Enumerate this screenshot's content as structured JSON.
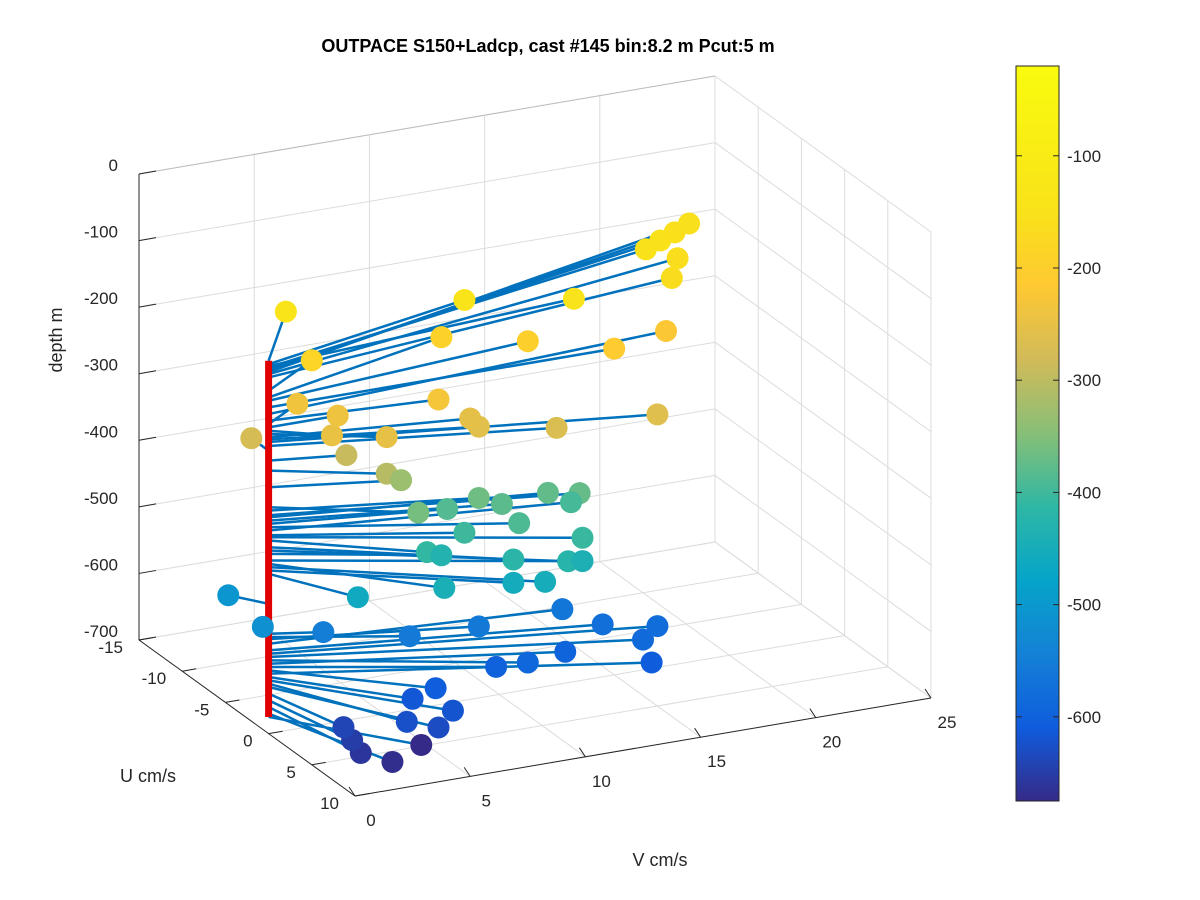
{
  "chart_data": {
    "type": "scatter",
    "title": "OUTPACE S150+Ladcp, cast #145 bin:8.2 m  Pcut:5 m",
    "xlabel": "U cm/s",
    "ylabel": "V cm/s",
    "zlabel": "depth m",
    "xlim": [
      -15,
      10
    ],
    "ylim": [
      0,
      25
    ],
    "zlim": [
      -700,
      0
    ],
    "grid": true,
    "xticks": [
      "-15",
      "-10",
      "-5",
      "0",
      "5",
      "10"
    ],
    "yticks": [
      "0",
      "5",
      "10",
      "15",
      "20",
      "25"
    ],
    "zticks": [
      "0",
      "-100",
      "-200",
      "-300",
      "-400",
      "-500",
      "-600",
      "-700"
    ],
    "colorbar": {
      "ticks": [
        "-100",
        "-200",
        "-300",
        "-400",
        "-500",
        "-600"
      ],
      "range": [
        -675,
        -20
      ],
      "colormap": "parula"
    },
    "stick_origin": {
      "u": 0,
      "v": 0
    },
    "stick_color": "#0072BD",
    "axis_line_color": "#E00000",
    "points": [
      {
        "d": -140,
        "u": -6,
        "v": 3
      },
      {
        "d": -145,
        "u": -4,
        "v": 10
      },
      {
        "d": -148,
        "u": -2,
        "v": 14
      },
      {
        "d": -150,
        "u": -7,
        "v": 19
      },
      {
        "d": -152,
        "u": -8,
        "v": 20
      },
      {
        "d": -155,
        "u": -9,
        "v": 21
      },
      {
        "d": -157,
        "u": -10,
        "v": 22
      },
      {
        "d": -160,
        "u": -6,
        "v": 20
      },
      {
        "d": -165,
        "u": -4,
        "v": 19
      },
      {
        "d": -185,
        "u": -3,
        "v": 3
      },
      {
        "d": -195,
        "u": -4,
        "v": 9
      },
      {
        "d": -200,
        "u": -2,
        "v": 12
      },
      {
        "d": -210,
        "u": 0,
        "v": 15
      },
      {
        "d": -220,
        "u": -2,
        "v": 18
      },
      {
        "d": -230,
        "u": 1,
        "v": 7
      },
      {
        "d": -235,
        "u": -2,
        "v": 2
      },
      {
        "d": -240,
        "u": 0,
        "v": 3
      },
      {
        "d": -245,
        "u": 2,
        "v": 2
      },
      {
        "d": -250,
        "u": 3,
        "v": 4
      },
      {
        "d": -255,
        "u": 2,
        "v": 8
      },
      {
        "d": -258,
        "u": 3,
        "v": 8
      },
      {
        "d": -262,
        "u": 5,
        "v": 15
      },
      {
        "d": -268,
        "u": 4,
        "v": 11
      },
      {
        "d": -275,
        "u": -2,
        "v": 0
      },
      {
        "d": -290,
        "u": 1,
        "v": 3
      },
      {
        "d": -305,
        "u": 3,
        "v": 4
      },
      {
        "d": -330,
        "u": 2,
        "v": 5
      },
      {
        "d": -360,
        "u": 4,
        "v": 5
      },
      {
        "d": -365,
        "u": 3,
        "v": 8
      },
      {
        "d": -372,
        "u": 4,
        "v": 12
      },
      {
        "d": -375,
        "u": 3,
        "v": 11
      },
      {
        "d": -380,
        "u": 3,
        "v": 9
      },
      {
        "d": -385,
        "u": 2,
        "v": 7
      },
      {
        "d": -390,
        "u": 5,
        "v": 9
      },
      {
        "d": -395,
        "u": 3,
        "v": 12
      },
      {
        "d": -402,
        "u": 4,
        "v": 7
      },
      {
        "d": -405,
        "u": 7,
        "v": 11
      },
      {
        "d": -410,
        "u": 5,
        "v": 5
      },
      {
        "d": -420,
        "u": 7,
        "v": 8
      },
      {
        "d": -425,
        "u": 8,
        "v": 10
      },
      {
        "d": -430,
        "u": 4,
        "v": 6
      },
      {
        "d": -440,
        "u": 7,
        "v": 11
      },
      {
        "d": -445,
        "u": 7,
        "v": 5
      },
      {
        "d": -450,
        "u": 8,
        "v": 9
      },
      {
        "d": -455,
        "u": 7,
        "v": 8
      },
      {
        "d": -460,
        "u": 5,
        "v": 2
      },
      {
        "d": -505,
        "u": -2,
        "v": -1
      },
      {
        "d": -515,
        "u": 2,
        "v": -1
      },
      {
        "d": -550,
        "u": 1,
        "v": 2
      },
      {
        "d": -555,
        "u": 3,
        "v": 5
      },
      {
        "d": -558,
        "u": 3,
        "v": 8
      },
      {
        "d": -565,
        "u": 2,
        "v": 12
      },
      {
        "d": -575,
        "u": 4,
        "v": 13
      },
      {
        "d": -580,
        "u": 5,
        "v": 15
      },
      {
        "d": -585,
        "u": 6,
        "v": 14
      },
      {
        "d": -590,
        "u": 6,
        "v": 9
      },
      {
        "d": -595,
        "u": 5,
        "v": 11
      },
      {
        "d": -600,
        "u": 5,
        "v": 8
      },
      {
        "d": -605,
        "u": 6,
        "v": 5
      },
      {
        "d": -610,
        "u": 7,
        "v": 14
      },
      {
        "d": -615,
        "u": 6,
        "v": 4
      },
      {
        "d": -620,
        "u": 8,
        "v": 5
      },
      {
        "d": -625,
        "u": 8,
        "v": 3
      },
      {
        "d": -630,
        "u": 9,
        "v": 4
      },
      {
        "d": -640,
        "u": 6,
        "v": 1
      },
      {
        "d": -650,
        "u": 7,
        "v": 1
      },
      {
        "d": -660,
        "u": 8,
        "v": 1
      },
      {
        "d": -670,
        "u": 9,
        "v": 2
      },
      {
        "d": -675,
        "u": 7,
        "v": 4
      }
    ]
  }
}
